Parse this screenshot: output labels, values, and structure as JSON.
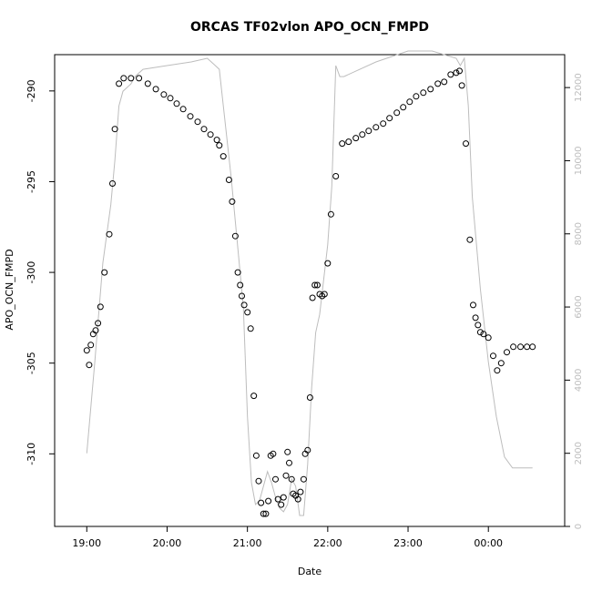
{
  "chart_data": {
    "type": "scatter",
    "title": "ORCAS TF02vlon APO_OCN_FMPD",
    "xlabel": "Date",
    "ylabel": "APO_OCN_FMPD",
    "y2label": "",
    "grid": false,
    "legend": "none",
    "x_unit": "time of day (hours, values past 24 wrap to next day)",
    "xlim": [
      18.6,
      24.95
    ],
    "ylim": [
      -314.0,
      -288.0
    ],
    "y2lim": [
      0,
      12900
    ],
    "x_ticks": [
      {
        "value": 19,
        "label": "19:00"
      },
      {
        "value": 20,
        "label": "20:00"
      },
      {
        "value": 21,
        "label": "21:00"
      },
      {
        "value": 22,
        "label": "22:00"
      },
      {
        "value": 23,
        "label": "23:00"
      },
      {
        "value": 24,
        "label": "00:00"
      }
    ],
    "y_ticks": [
      {
        "value": -290,
        "label": "-290"
      },
      {
        "value": -295,
        "label": "-295"
      },
      {
        "value": -300,
        "label": "-300"
      },
      {
        "value": -305,
        "label": "-305"
      },
      {
        "value": -310,
        "label": "-310"
      }
    ],
    "y2_ticks": [
      {
        "value": 0,
        "label": "0"
      },
      {
        "value": 2000,
        "label": "2000"
      },
      {
        "value": 4000,
        "label": "4000"
      },
      {
        "value": 6000,
        "label": "6000"
      },
      {
        "value": 8000,
        "label": "8000"
      },
      {
        "value": 10000,
        "label": "10000"
      },
      {
        "value": 12000,
        "label": "12000"
      }
    ],
    "colors": {
      "points": "#000000",
      "line": "#bdbdbd",
      "axis": "#000000",
      "y2_labels": "#bdbdbd"
    },
    "series": [
      {
        "kind": "points",
        "axis": "left",
        "x": [
          19.0,
          19.03,
          19.05,
          19.08,
          19.11,
          19.14,
          19.17,
          19.22,
          19.28,
          19.32,
          19.35,
          19.4,
          19.46,
          19.55,
          19.65,
          19.76,
          19.86,
          19.96,
          20.04,
          20.12,
          20.2,
          20.29,
          20.38,
          20.46,
          20.54,
          20.62,
          20.65,
          20.7,
          20.77,
          20.81,
          20.85,
          20.88,
          20.91,
          20.93,
          20.96,
          21.0,
          21.04,
          21.08,
          21.11,
          21.14,
          21.17,
          21.2,
          21.23,
          21.26,
          21.29,
          21.32,
          21.35,
          21.38,
          21.42,
          21.45,
          21.48,
          21.5,
          21.52,
          21.55,
          21.57,
          21.6,
          21.63,
          21.66,
          21.7,
          21.72,
          21.75,
          21.78,
          21.81,
          21.84,
          21.87,
          21.9,
          21.93,
          21.96,
          22.0,
          22.04,
          22.1,
          22.18,
          22.26,
          22.35,
          22.43,
          22.51,
          22.6,
          22.69,
          22.77,
          22.86,
          22.94,
          23.02,
          23.1,
          23.19,
          23.28,
          23.37,
          23.45,
          23.53,
          23.6,
          23.64,
          23.67,
          23.72,
          23.77,
          23.81,
          23.84,
          23.87,
          23.9,
          23.94,
          24.0,
          24.06,
          24.11,
          24.16,
          24.23,
          24.31,
          24.4,
          24.48,
          24.55
        ],
        "y": [
          -304.3,
          -305.1,
          -304.0,
          -303.4,
          -303.2,
          -302.8,
          -301.9,
          -300.0,
          -297.9,
          -295.1,
          -292.1,
          -289.6,
          -289.3,
          -289.3,
          -289.3,
          -289.6,
          -289.9,
          -290.2,
          -290.4,
          -290.7,
          -291.0,
          -291.4,
          -291.7,
          -292.1,
          -292.4,
          -292.7,
          -293.0,
          -293.6,
          -294.9,
          -296.1,
          -298.0,
          -300.0,
          -300.7,
          -301.3,
          -301.8,
          -302.2,
          -303.1,
          -306.8,
          -310.1,
          -311.5,
          -312.7,
          -313.3,
          -313.3,
          -312.6,
          -310.1,
          -310.0,
          -311.4,
          -312.5,
          -312.8,
          -312.4,
          -311.2,
          -309.9,
          -310.5,
          -311.4,
          -312.2,
          -312.3,
          -312.5,
          -312.1,
          -311.4,
          -310.0,
          -309.8,
          -306.9,
          -301.4,
          -300.7,
          -300.7,
          -301.2,
          -301.3,
          -301.2,
          -299.5,
          -296.8,
          -294.7,
          -292.9,
          -292.8,
          -292.6,
          -292.4,
          -292.2,
          -292.0,
          -291.8,
          -291.5,
          -291.2,
          -290.9,
          -290.6,
          -290.3,
          -290.1,
          -289.9,
          -289.6,
          -289.5,
          -289.1,
          -289.0,
          -288.9,
          -289.7,
          -292.9,
          -298.2,
          -301.8,
          -302.5,
          -302.9,
          -303.3,
          -303.4,
          -303.6,
          -304.6,
          -305.4,
          -305.0,
          -304.4,
          -304.1,
          -304.1,
          -304.1,
          -304.1
        ]
      },
      {
        "kind": "line",
        "axis": "right",
        "x": [
          19.0,
          19.1,
          19.2,
          19.3,
          19.35,
          19.4,
          19.45,
          19.55,
          19.6,
          19.7,
          20.0,
          20.3,
          20.5,
          20.55,
          20.6,
          20.65,
          20.8,
          20.95,
          21.0,
          21.05,
          21.1,
          21.15,
          21.2,
          21.25,
          21.3,
          21.35,
          21.4,
          21.45,
          21.5,
          21.55,
          21.6,
          21.65,
          21.7,
          21.75,
          21.8,
          21.85,
          21.9,
          22.0,
          22.05,
          22.1,
          22.15,
          22.2,
          22.6,
          23.0,
          23.3,
          23.6,
          23.65,
          23.7,
          23.75,
          23.8,
          23.9,
          24.0,
          24.1,
          24.2,
          24.3,
          24.4,
          24.55
        ],
        "y": [
          2000,
          4500,
          7200,
          8800,
          10000,
          11500,
          11900,
          12100,
          12300,
          12500,
          12600,
          12700,
          12800,
          12700,
          12600,
          12500,
          9500,
          6000,
          3000,
          1200,
          600,
          700,
          1100,
          1500,
          1200,
          800,
          500,
          400,
          600,
          1300,
          1100,
          300,
          300,
          1700,
          3800,
          5300,
          5800,
          7700,
          9300,
          12600,
          12300,
          12300,
          12700,
          13000,
          13000,
          12800,
          12600,
          12800,
          11500,
          9000,
          6500,
          4500,
          3000,
          1900,
          1600,
          1600,
          1600
        ]
      }
    ]
  }
}
